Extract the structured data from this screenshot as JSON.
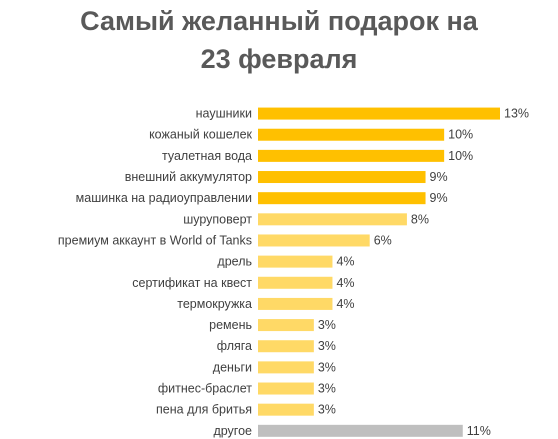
{
  "chart_data": {
    "type": "bar",
    "orientation": "horizontal",
    "title_lines": [
      "Самый желанный подарок на",
      "23 февраля"
    ],
    "categories": [
      "наушники",
      "кожаный кошелек",
      "туалетная вода",
      "внешний аккумулятор",
      "машинка на радиоуправлении",
      "шуруповерт",
      "премиум аккаунт в World of Tanks",
      "дрель",
      "сертификат на квест",
      "термокружка",
      "ремень",
      "фляга",
      "деньги",
      "фитнес-браслет",
      "пена для бритья",
      "другое"
    ],
    "values": [
      13,
      10,
      10,
      9,
      9,
      8,
      6,
      4,
      4,
      4,
      3,
      3,
      3,
      3,
      3,
      11
    ],
    "value_labels": [
      "13%",
      "10%",
      "10%",
      "9%",
      "9%",
      "8%",
      "6%",
      "4%",
      "4%",
      "4%",
      "3%",
      "3%",
      "3%",
      "3%",
      "3%",
      "11%"
    ],
    "bar_colors": [
      "#ffc000",
      "#ffc000",
      "#ffc000",
      "#ffc000",
      "#ffc000",
      "#ffd966",
      "#ffd966",
      "#ffd966",
      "#ffd966",
      "#ffd966",
      "#ffd966",
      "#ffd966",
      "#ffd966",
      "#ffd966",
      "#ffd966",
      "#bfbfbf"
    ],
    "xlim": [
      0,
      13
    ],
    "grid": false,
    "legend": "none"
  }
}
